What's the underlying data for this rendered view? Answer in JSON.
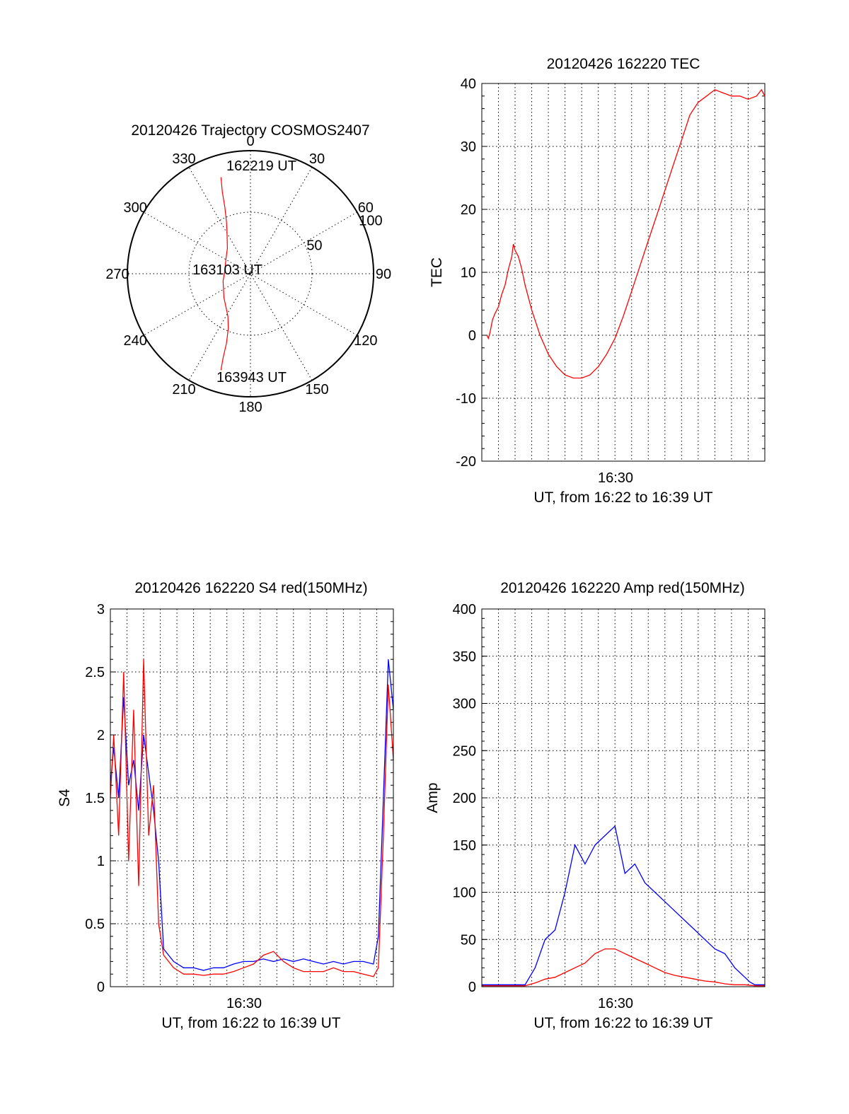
{
  "colors": {
    "red": "#ff0000",
    "blue": "#0000ff",
    "axis": "#000000"
  },
  "chart_data": [
    {
      "id": "polar",
      "type": "polar",
      "title": "20120426 Trajectory COSMOS2407",
      "azimuth_labels": [
        "0",
        "30",
        "60",
        "90",
        "120",
        "150",
        "180",
        "210",
        "240",
        "270",
        "300",
        "330"
      ],
      "radial_labels": [
        "50",
        "100"
      ],
      "rlim": [
        0,
        100
      ],
      "trajectory": {
        "color": "red",
        "points": [
          [
            -17,
            82
          ],
          [
            -19,
            70
          ],
          [
            -21,
            58
          ],
          [
            -25,
            46
          ],
          [
            -30,
            38
          ],
          [
            -42,
            28
          ],
          [
            -60,
            23
          ],
          [
            -86,
            21
          ],
          [
            -105,
            23
          ],
          [
            -132,
            29
          ],
          [
            -152,
            39
          ],
          [
            -158,
            48
          ],
          [
            -161,
            60
          ],
          [
            -162,
            72
          ],
          [
            -163,
            82
          ]
        ]
      },
      "annotations": [
        "162219 UT",
        "163103 UT",
        "163943 UT"
      ]
    },
    {
      "id": "tec",
      "type": "line",
      "title": "20120426 162220 TEC",
      "ylabel": "TEC",
      "xlabel": "UT, from 16:22 to 16:39 UT",
      "xtick_label": "16:30",
      "xlim": [
        16.3667,
        16.65
      ],
      "ylim": [
        -20,
        40
      ],
      "yticks": [
        "40",
        "30",
        "20",
        "10",
        "0",
        "-10",
        "-20"
      ],
      "grid": true,
      "series": [
        {
          "color": "red",
          "x": [
            16.3717,
            16.3733,
            16.375,
            16.3775,
            16.38,
            16.3833,
            16.3867,
            16.39,
            16.3933,
            16.3967,
            16.3983,
            16.4,
            16.4033,
            16.4067,
            16.41,
            16.4167,
            16.425,
            16.4333,
            16.4417,
            16.45,
            16.4583,
            16.4667,
            16.475,
            16.4833,
            16.4917,
            16.5,
            16.5083,
            16.5167,
            16.525,
            16.5333,
            16.5417,
            16.55,
            16.5583,
            16.5667,
            16.575,
            16.5833,
            16.5917,
            16.6,
            16.6083,
            16.6167,
            16.625,
            16.6333,
            16.6417,
            16.6467,
            16.65
          ],
          "y": [
            0,
            -0.5,
            0.5,
            2.5,
            3.5,
            4.5,
            6.5,
            8,
            10.5,
            12.5,
            14.5,
            13.5,
            12.5,
            10.5,
            8,
            4,
            0,
            -3,
            -5,
            -6.3,
            -6.8,
            -6.8,
            -6.3,
            -5,
            -3,
            -0.5,
            3,
            7,
            11,
            15,
            19,
            23,
            27,
            31,
            35,
            37,
            38,
            39,
            38.5,
            38,
            38,
            37.5,
            38,
            39,
            38
          ]
        }
      ]
    },
    {
      "id": "s4",
      "type": "line",
      "title": "20120426 162220 S4 red(150MHz)",
      "ylabel": "S4",
      "xlabel": "UT, from 16:22 to 16:39 UT",
      "xtick_label": "16:30",
      "xlim": [
        16.3667,
        16.65
      ],
      "ylim": [
        0,
        3
      ],
      "yticks": [
        "3",
        "2.5",
        "2",
        "1.5",
        "1",
        "0.5",
        "0"
      ],
      "grid": true,
      "series": [
        {
          "color": "blue",
          "x": [
            16.3667,
            16.37,
            16.375,
            16.38,
            16.385,
            16.39,
            16.395,
            16.4,
            16.405,
            16.41,
            16.415,
            16.42,
            16.43,
            16.44,
            16.45,
            16.46,
            16.47,
            16.48,
            16.49,
            16.5,
            16.51,
            16.52,
            16.53,
            16.54,
            16.55,
            16.56,
            16.57,
            16.58,
            16.59,
            16.6,
            16.61,
            16.62,
            16.63,
            16.635,
            16.64,
            16.645,
            16.65
          ],
          "y": [
            1.6,
            1.9,
            1.5,
            2.3,
            1.6,
            1.8,
            1.4,
            2.0,
            1.7,
            1.4,
            1.0,
            0.3,
            0.2,
            0.15,
            0.15,
            0.13,
            0.15,
            0.15,
            0.18,
            0.2,
            0.2,
            0.22,
            0.2,
            0.22,
            0.2,
            0.22,
            0.2,
            0.18,
            0.2,
            0.18,
            0.2,
            0.2,
            0.18,
            0.4,
            1.5,
            2.6,
            2.2
          ]
        },
        {
          "color": "red",
          "x": [
            16.3667,
            16.37,
            16.375,
            16.38,
            16.385,
            16.39,
            16.395,
            16.4,
            16.405,
            16.41,
            16.415,
            16.42,
            16.43,
            16.44,
            16.45,
            16.46,
            16.47,
            16.48,
            16.49,
            16.5,
            16.51,
            16.52,
            16.53,
            16.54,
            16.55,
            16.56,
            16.57,
            16.58,
            16.59,
            16.6,
            16.61,
            16.62,
            16.63,
            16.635,
            16.64,
            16.645,
            16.65
          ],
          "y": [
            1.5,
            2.0,
            1.2,
            2.5,
            1.0,
            2.2,
            0.8,
            2.6,
            1.2,
            1.6,
            0.5,
            0.25,
            0.15,
            0.1,
            0.1,
            0.09,
            0.1,
            0.1,
            0.12,
            0.15,
            0.18,
            0.25,
            0.28,
            0.2,
            0.15,
            0.12,
            0.12,
            0.12,
            0.15,
            0.12,
            0.12,
            0.1,
            0.08,
            0.15,
            1.2,
            2.4,
            1.8
          ]
        }
      ]
    },
    {
      "id": "amp",
      "type": "line",
      "title": "20120426 162220 Amp red(150MHz)",
      "ylabel": "Amp",
      "xlabel": "UT, from 16:22 to 16:39 UT",
      "xtick_label": "16:30",
      "xlim": [
        16.3667,
        16.65
      ],
      "ylim": [
        0,
        400
      ],
      "yticks": [
        "400",
        "350",
        "300",
        "250",
        "200",
        "150",
        "100",
        "50",
        "0"
      ],
      "grid": true,
      "series": [
        {
          "color": "blue",
          "x": [
            16.3667,
            16.38,
            16.39,
            16.41,
            16.42,
            16.43,
            16.44,
            16.45,
            16.46,
            16.47,
            16.48,
            16.49,
            16.5,
            16.51,
            16.52,
            16.53,
            16.54,
            16.55,
            16.56,
            16.57,
            16.58,
            16.59,
            16.6,
            16.61,
            16.62,
            16.625,
            16.63,
            16.635,
            16.64,
            16.65
          ],
          "y": [
            2,
            2,
            2,
            2,
            20,
            50,
            60,
            100,
            150,
            130,
            150,
            160,
            170,
            120,
            130,
            110,
            100,
            90,
            80,
            70,
            60,
            50,
            40,
            35,
            20,
            15,
            10,
            5,
            2,
            2
          ]
        },
        {
          "color": "red",
          "x": [
            16.3667,
            16.41,
            16.42,
            16.43,
            16.44,
            16.45,
            16.46,
            16.47,
            16.48,
            16.49,
            16.5,
            16.51,
            16.52,
            16.53,
            16.54,
            16.55,
            16.56,
            16.57,
            16.58,
            16.59,
            16.6,
            16.61,
            16.62,
            16.63,
            16.64,
            16.65
          ],
          "y": [
            1,
            1,
            4,
            8,
            10,
            15,
            20,
            25,
            35,
            40,
            40,
            35,
            30,
            25,
            20,
            15,
            12,
            10,
            8,
            6,
            5,
            3,
            2,
            2,
            1,
            1
          ]
        }
      ]
    }
  ]
}
